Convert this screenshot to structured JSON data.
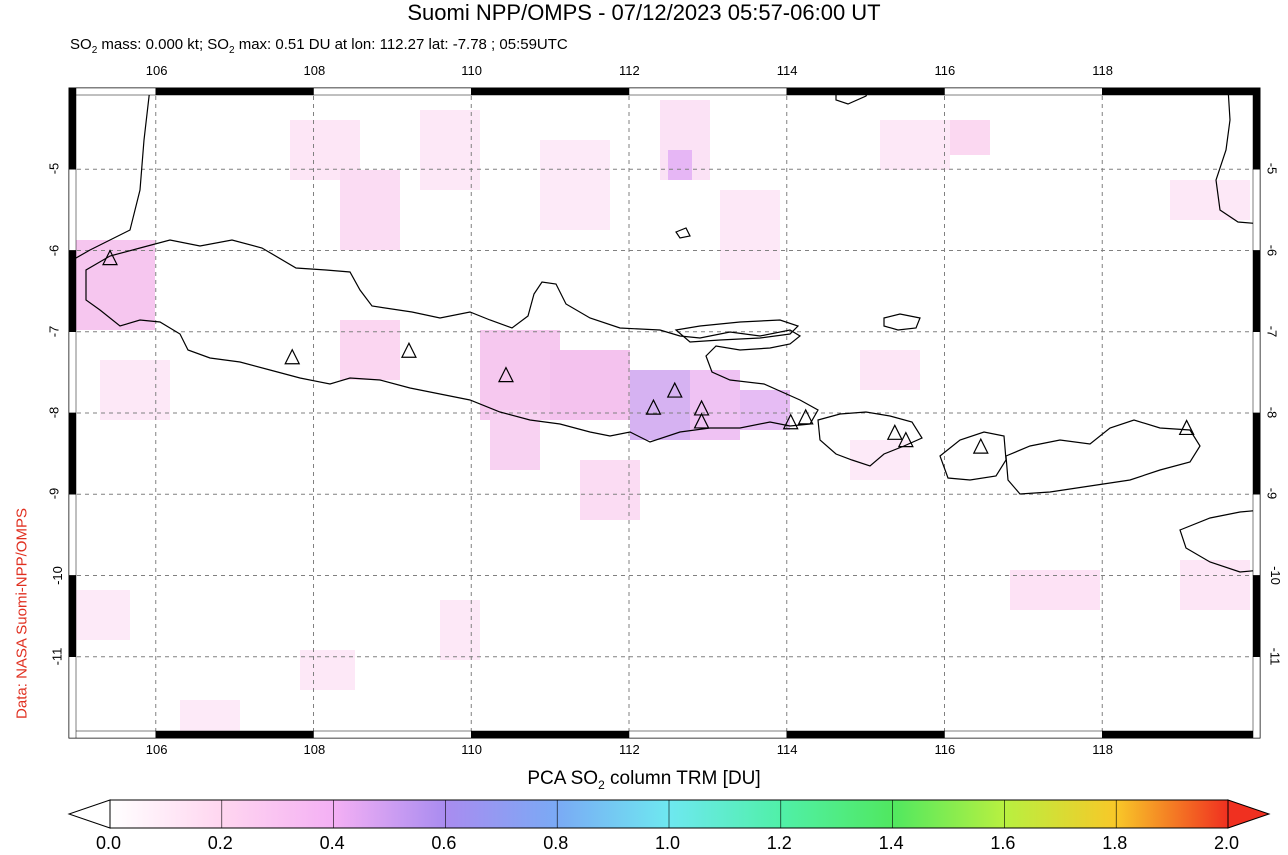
{
  "title": "Suomi NPP/OMPS - 07/12/2023 05:57-06:00 UT",
  "subtitle": {
    "prefix": "SO",
    "sub": "2",
    "mid": " mass: 0.000 kt; SO",
    "sub2": "2",
    "rest": " max: 0.51 DU at lon: 112.27 lat: -7.78 ; 05:59UTC"
  },
  "credit": "Data: NASA Suomi-NPP/OMPS",
  "lon_ticks": [
    "106",
    "108",
    "110",
    "112",
    "114",
    "116",
    "118"
  ],
  "lat_ticks": [
    "-5",
    "-6",
    "-7",
    "-8",
    "-9",
    "-10",
    "-11"
  ],
  "colorbar": {
    "label_prefix": "PCA SO",
    "label_sub": "2",
    "label_rest": " column TRM [DU]",
    "ticks": [
      "0.0",
      "0.2",
      "0.4",
      "0.6",
      "0.8",
      "1.0",
      "1.2",
      "1.4",
      "1.6",
      "1.8",
      "2.0"
    ],
    "min": 0.0,
    "max": 2.0
  },
  "map": {
    "lon_range": [
      104.9,
      120.0
    ],
    "lat_range": [
      -12.0,
      -4.0
    ],
    "max_value_point": {
      "lon": 112.27,
      "lat": -7.78,
      "value": 0.51
    },
    "volcanoes": [
      {
        "lon": 105.42,
        "lat": -6.1
      },
      {
        "lon": 107.73,
        "lat": -7.32
      },
      {
        "lon": 109.21,
        "lat": -7.24
      },
      {
        "lon": 110.44,
        "lat": -7.54
      },
      {
        "lon": 112.31,
        "lat": -7.94
      },
      {
        "lon": 112.58,
        "lat": -7.73
      },
      {
        "lon": 112.92,
        "lat": -7.95
      },
      {
        "lon": 112.92,
        "lat": -8.11
      },
      {
        "lon": 114.05,
        "lat": -8.12
      },
      {
        "lon": 114.24,
        "lat": -8.06
      },
      {
        "lon": 115.37,
        "lat": -8.25
      },
      {
        "lon": 115.51,
        "lat": -8.34
      },
      {
        "lon": 116.46,
        "lat": -8.42
      },
      {
        "lon": 119.07,
        "lat": -8.19
      }
    ]
  },
  "colors": {
    "credit": "#e03020",
    "coast": "#000000",
    "grid": "#808080"
  }
}
